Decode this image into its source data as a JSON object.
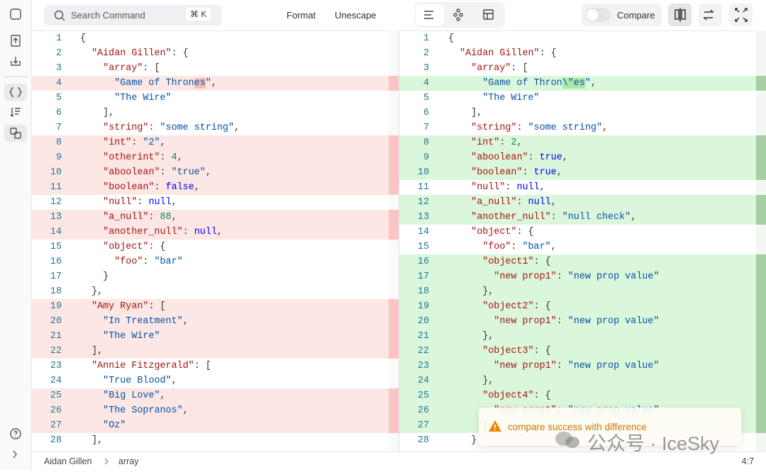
{
  "header": {
    "search": "Search Command",
    "shortcut": "⌘ K",
    "format": "Format",
    "unescape": "Unescape",
    "compare": "Compare"
  },
  "left": {
    "lines": [
      {
        "n": "1",
        "hl": false,
        "t": [
          [
            "p",
            "{"
          ]
        ]
      },
      {
        "n": "2",
        "hl": false,
        "t": [
          [
            "p",
            "  "
          ],
          [
            "k",
            "\"Aidan Gillen\""
          ],
          [
            "p",
            ": {"
          ]
        ]
      },
      {
        "n": "3",
        "hl": false,
        "t": [
          [
            "p",
            "    "
          ],
          [
            "k",
            "\"array\""
          ],
          [
            "p",
            ": ["
          ]
        ]
      },
      {
        "n": "4",
        "hl": true,
        "t": [
          [
            "p",
            "      "
          ],
          [
            "s",
            "\"Game of Thron"
          ],
          [
            "x",
            "es"
          ],
          [
            "s",
            "\""
          ],
          [
            "p",
            ","
          ]
        ]
      },
      {
        "n": "5",
        "hl": false,
        "t": [
          [
            "p",
            "      "
          ],
          [
            "s",
            "\"The Wire\""
          ]
        ]
      },
      {
        "n": "6",
        "hl": false,
        "t": [
          [
            "p",
            "    ],"
          ]
        ]
      },
      {
        "n": "7",
        "hl": false,
        "t": [
          [
            "p",
            "    "
          ],
          [
            "k",
            "\"string\""
          ],
          [
            "p",
            ": "
          ],
          [
            "s",
            "\"some string\""
          ],
          [
            "p",
            ","
          ]
        ]
      },
      {
        "n": "8",
        "hl": true,
        "t": [
          [
            "p",
            "    "
          ],
          [
            "k",
            "\"int\""
          ],
          [
            "p",
            ": "
          ],
          [
            "s",
            "\"2\""
          ],
          [
            "p",
            ","
          ]
        ]
      },
      {
        "n": "9",
        "hl": true,
        "t": [
          [
            "p",
            "    "
          ],
          [
            "k",
            "\"otherint\""
          ],
          [
            "p",
            ": "
          ],
          [
            "n",
            "4"
          ],
          [
            "p",
            ","
          ]
        ]
      },
      {
        "n": "10",
        "hl": true,
        "t": [
          [
            "p",
            "    "
          ],
          [
            "k",
            "\"aboolean\""
          ],
          [
            "p",
            ": "
          ],
          [
            "s",
            "\"true\""
          ],
          [
            "p",
            ","
          ]
        ]
      },
      {
        "n": "11",
        "hl": true,
        "t": [
          [
            "p",
            "    "
          ],
          [
            "k",
            "\"boolean\""
          ],
          [
            "p",
            ": "
          ],
          [
            "l",
            "false"
          ],
          [
            "p",
            ","
          ]
        ]
      },
      {
        "n": "12",
        "hl": false,
        "t": [
          [
            "p",
            "    "
          ],
          [
            "k",
            "\"null\""
          ],
          [
            "p",
            ": "
          ],
          [
            "l",
            "null"
          ],
          [
            "p",
            ","
          ]
        ]
      },
      {
        "n": "13",
        "hl": true,
        "t": [
          [
            "p",
            "    "
          ],
          [
            "k",
            "\"a_null\""
          ],
          [
            "p",
            ": "
          ],
          [
            "n",
            "88"
          ],
          [
            "p",
            ","
          ]
        ]
      },
      {
        "n": "14",
        "hl": true,
        "t": [
          [
            "p",
            "    "
          ],
          [
            "k",
            "\"another_null\""
          ],
          [
            "p",
            ": "
          ],
          [
            "l",
            "null"
          ],
          [
            "p",
            ","
          ]
        ]
      },
      {
        "n": "15",
        "hl": false,
        "t": [
          [
            "p",
            "    "
          ],
          [
            "k",
            "\"object\""
          ],
          [
            "p",
            ": {"
          ]
        ]
      },
      {
        "n": "16",
        "hl": false,
        "t": [
          [
            "p",
            "      "
          ],
          [
            "k",
            "\"foo\""
          ],
          [
            "p",
            ": "
          ],
          [
            "s",
            "\"bar\""
          ]
        ]
      },
      {
        "n": "17",
        "hl": false,
        "t": [
          [
            "p",
            "    }"
          ]
        ]
      },
      {
        "n": "18",
        "hl": false,
        "t": [
          [
            "p",
            "  },"
          ]
        ]
      },
      {
        "n": "19",
        "hl": true,
        "t": [
          [
            "p",
            "  "
          ],
          [
            "k",
            "\"Amy Ryan\""
          ],
          [
            "p",
            ": ["
          ]
        ]
      },
      {
        "n": "20",
        "hl": true,
        "t": [
          [
            "p",
            "    "
          ],
          [
            "s",
            "\"In Treatment\""
          ],
          [
            "p",
            ","
          ]
        ]
      },
      {
        "n": "21",
        "hl": true,
        "t": [
          [
            "p",
            "    "
          ],
          [
            "s",
            "\"The Wire\""
          ]
        ]
      },
      {
        "n": "22",
        "hl": true,
        "t": [
          [
            "p",
            "  ],"
          ]
        ]
      },
      {
        "n": "23",
        "hl": false,
        "t": [
          [
            "p",
            "  "
          ],
          [
            "k",
            "\"Annie Fitzgerald\""
          ],
          [
            "p",
            ": ["
          ]
        ]
      },
      {
        "n": "24",
        "hl": false,
        "t": [
          [
            "p",
            "    "
          ],
          [
            "s",
            "\"True Blood\""
          ],
          [
            "p",
            ","
          ]
        ]
      },
      {
        "n": "25",
        "hl": true,
        "t": [
          [
            "p",
            "    "
          ],
          [
            "s",
            "\"Big Love\""
          ],
          [
            "p",
            ","
          ]
        ]
      },
      {
        "n": "26",
        "hl": true,
        "t": [
          [
            "p",
            "    "
          ],
          [
            "s",
            "\"The Sopranos\""
          ],
          [
            "p",
            ","
          ]
        ]
      },
      {
        "n": "27",
        "hl": true,
        "t": [
          [
            "p",
            "    "
          ],
          [
            "s",
            "\"Oz\""
          ]
        ]
      },
      {
        "n": "28",
        "hl": false,
        "t": [
          [
            "p",
            "  ],"
          ]
        ]
      }
    ]
  },
  "right": {
    "lines": [
      {
        "n": "1",
        "hl": false,
        "t": [
          [
            "p",
            "{"
          ]
        ]
      },
      {
        "n": "2",
        "hl": false,
        "t": [
          [
            "p",
            "  "
          ],
          [
            "k",
            "\"Aidan Gillen\""
          ],
          [
            "p",
            ": {"
          ]
        ]
      },
      {
        "n": "3",
        "hl": false,
        "t": [
          [
            "p",
            "    "
          ],
          [
            "k",
            "\"array\""
          ],
          [
            "p",
            ": ["
          ]
        ]
      },
      {
        "n": "4",
        "hl": true,
        "t": [
          [
            "p",
            "      "
          ],
          [
            "s",
            "\"Game of Thron"
          ],
          [
            "x",
            "\\\"es"
          ],
          [
            "s",
            "\""
          ],
          [
            "p",
            ","
          ]
        ]
      },
      {
        "n": "5",
        "hl": false,
        "t": [
          [
            "p",
            "      "
          ],
          [
            "s",
            "\"The Wire\""
          ]
        ]
      },
      {
        "n": "6",
        "hl": false,
        "t": [
          [
            "p",
            "    ],"
          ]
        ]
      },
      {
        "n": "7",
        "hl": false,
        "t": [
          [
            "p",
            "    "
          ],
          [
            "k",
            "\"string\""
          ],
          [
            "p",
            ": "
          ],
          [
            "s",
            "\"some string\""
          ],
          [
            "p",
            ","
          ]
        ]
      },
      {
        "n": "8",
        "hl": true,
        "t": [
          [
            "p",
            "    "
          ],
          [
            "k",
            "\"int\""
          ],
          [
            "p",
            ": "
          ],
          [
            "n",
            "2"
          ],
          [
            "p",
            ","
          ]
        ]
      },
      {
        "n": "9",
        "hl": true,
        "t": [
          [
            "p",
            "    "
          ],
          [
            "k",
            "\"aboolean\""
          ],
          [
            "p",
            ": "
          ],
          [
            "l",
            "true"
          ],
          [
            "p",
            ","
          ]
        ]
      },
      {
        "n": "10",
        "hl": true,
        "t": [
          [
            "p",
            "    "
          ],
          [
            "k",
            "\"boolean\""
          ],
          [
            "p",
            ": "
          ],
          [
            "l",
            "true"
          ],
          [
            "p",
            ","
          ]
        ]
      },
      {
        "n": "11",
        "hl": false,
        "t": [
          [
            "p",
            "    "
          ],
          [
            "k",
            "\"null\""
          ],
          [
            "p",
            ": "
          ],
          [
            "l",
            "null"
          ],
          [
            "p",
            ","
          ]
        ]
      },
      {
        "n": "12",
        "hl": true,
        "t": [
          [
            "p",
            "    "
          ],
          [
            "k",
            "\"a_null\""
          ],
          [
            "p",
            ": "
          ],
          [
            "l",
            "null"
          ],
          [
            "p",
            ","
          ]
        ]
      },
      {
        "n": "13",
        "hl": true,
        "t": [
          [
            "p",
            "    "
          ],
          [
            "k",
            "\"another_null\""
          ],
          [
            "p",
            ": "
          ],
          [
            "s",
            "\"null check\""
          ],
          [
            "p",
            ","
          ]
        ]
      },
      {
        "n": "14",
        "hl": false,
        "t": [
          [
            "p",
            "    "
          ],
          [
            "k",
            "\"object\""
          ],
          [
            "p",
            ": {"
          ]
        ]
      },
      {
        "n": "15",
        "hl": false,
        "t": [
          [
            "p",
            "      "
          ],
          [
            "k",
            "\"foo\""
          ],
          [
            "p",
            ": "
          ],
          [
            "s",
            "\"bar\""
          ],
          [
            "p",
            ","
          ]
        ]
      },
      {
        "n": "16",
        "hl": true,
        "t": [
          [
            "p",
            "      "
          ],
          [
            "k",
            "\"object1\""
          ],
          [
            "p",
            ": {"
          ]
        ]
      },
      {
        "n": "17",
        "hl": true,
        "t": [
          [
            "p",
            "        "
          ],
          [
            "k",
            "\"new prop1\""
          ],
          [
            "p",
            ": "
          ],
          [
            "s",
            "\"new prop value\""
          ]
        ]
      },
      {
        "n": "18",
        "hl": true,
        "t": [
          [
            "p",
            "      },"
          ]
        ]
      },
      {
        "n": "19",
        "hl": true,
        "t": [
          [
            "p",
            "      "
          ],
          [
            "k",
            "\"object2\""
          ],
          [
            "p",
            ": {"
          ]
        ]
      },
      {
        "n": "20",
        "hl": true,
        "t": [
          [
            "p",
            "        "
          ],
          [
            "k",
            "\"new prop1\""
          ],
          [
            "p",
            ": "
          ],
          [
            "s",
            "\"new prop value\""
          ]
        ]
      },
      {
        "n": "21",
        "hl": true,
        "t": [
          [
            "p",
            "      },"
          ]
        ]
      },
      {
        "n": "22",
        "hl": true,
        "t": [
          [
            "p",
            "      "
          ],
          [
            "k",
            "\"object3\""
          ],
          [
            "p",
            ": {"
          ]
        ]
      },
      {
        "n": "23",
        "hl": true,
        "t": [
          [
            "p",
            "        "
          ],
          [
            "k",
            "\"new prop1\""
          ],
          [
            "p",
            ": "
          ],
          [
            "s",
            "\"new prop value\""
          ]
        ]
      },
      {
        "n": "24",
        "hl": true,
        "t": [
          [
            "p",
            "      },"
          ]
        ]
      },
      {
        "n": "25",
        "hl": true,
        "t": [
          [
            "p",
            "      "
          ],
          [
            "k",
            "\"object4\""
          ],
          [
            "p",
            ": {"
          ]
        ]
      },
      {
        "n": "26",
        "hl": true,
        "t": [
          [
            "p",
            "        "
          ],
          [
            "k",
            "\"new prop1\""
          ],
          [
            "p",
            ": "
          ],
          [
            "s",
            "\"new prop value\""
          ]
        ]
      },
      {
        "n": "27",
        "hl": true,
        "t": [
          [
            "p",
            "      }"
          ]
        ]
      },
      {
        "n": "28",
        "hl": false,
        "t": [
          [
            "p",
            "    }"
          ]
        ]
      }
    ]
  },
  "status": {
    "path": [
      "Aidan Gillen",
      "array"
    ],
    "position": "4:7"
  },
  "toast": {
    "message": "compare success with difference"
  },
  "watermark": "公众号 · IceSky"
}
